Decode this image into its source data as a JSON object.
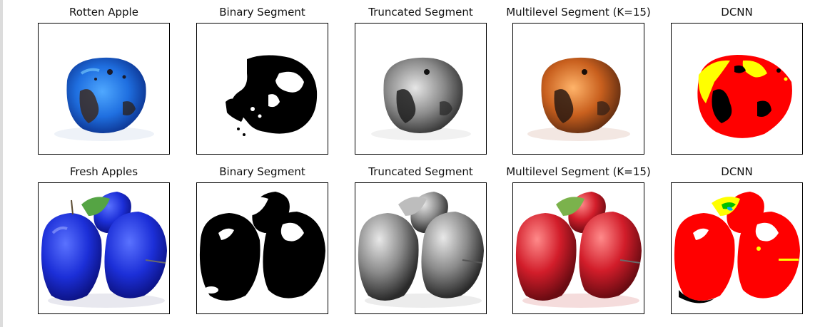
{
  "rows": [
    {
      "panels": [
        {
          "title": "Rotten Apple",
          "style": "rotten-blue"
        },
        {
          "title": "Binary Segment",
          "style": "rotten-binary"
        },
        {
          "title": "Truncated Segment",
          "style": "rotten-gray"
        },
        {
          "title": "Multilevel Segment (K=15)",
          "style": "rotten-orange"
        },
        {
          "title": "DCNN",
          "style": "rotten-dcnn"
        }
      ]
    },
    {
      "panels": [
        {
          "title": "Fresh Apples",
          "style": "fresh-blue"
        },
        {
          "title": "Binary Segment",
          "style": "fresh-binary"
        },
        {
          "title": "Truncated Segment",
          "style": "fresh-gray"
        },
        {
          "title": "Multilevel Segment (K=15)",
          "style": "fresh-red"
        },
        {
          "title": "DCNN",
          "style": "fresh-dcnn"
        }
      ]
    }
  ]
}
